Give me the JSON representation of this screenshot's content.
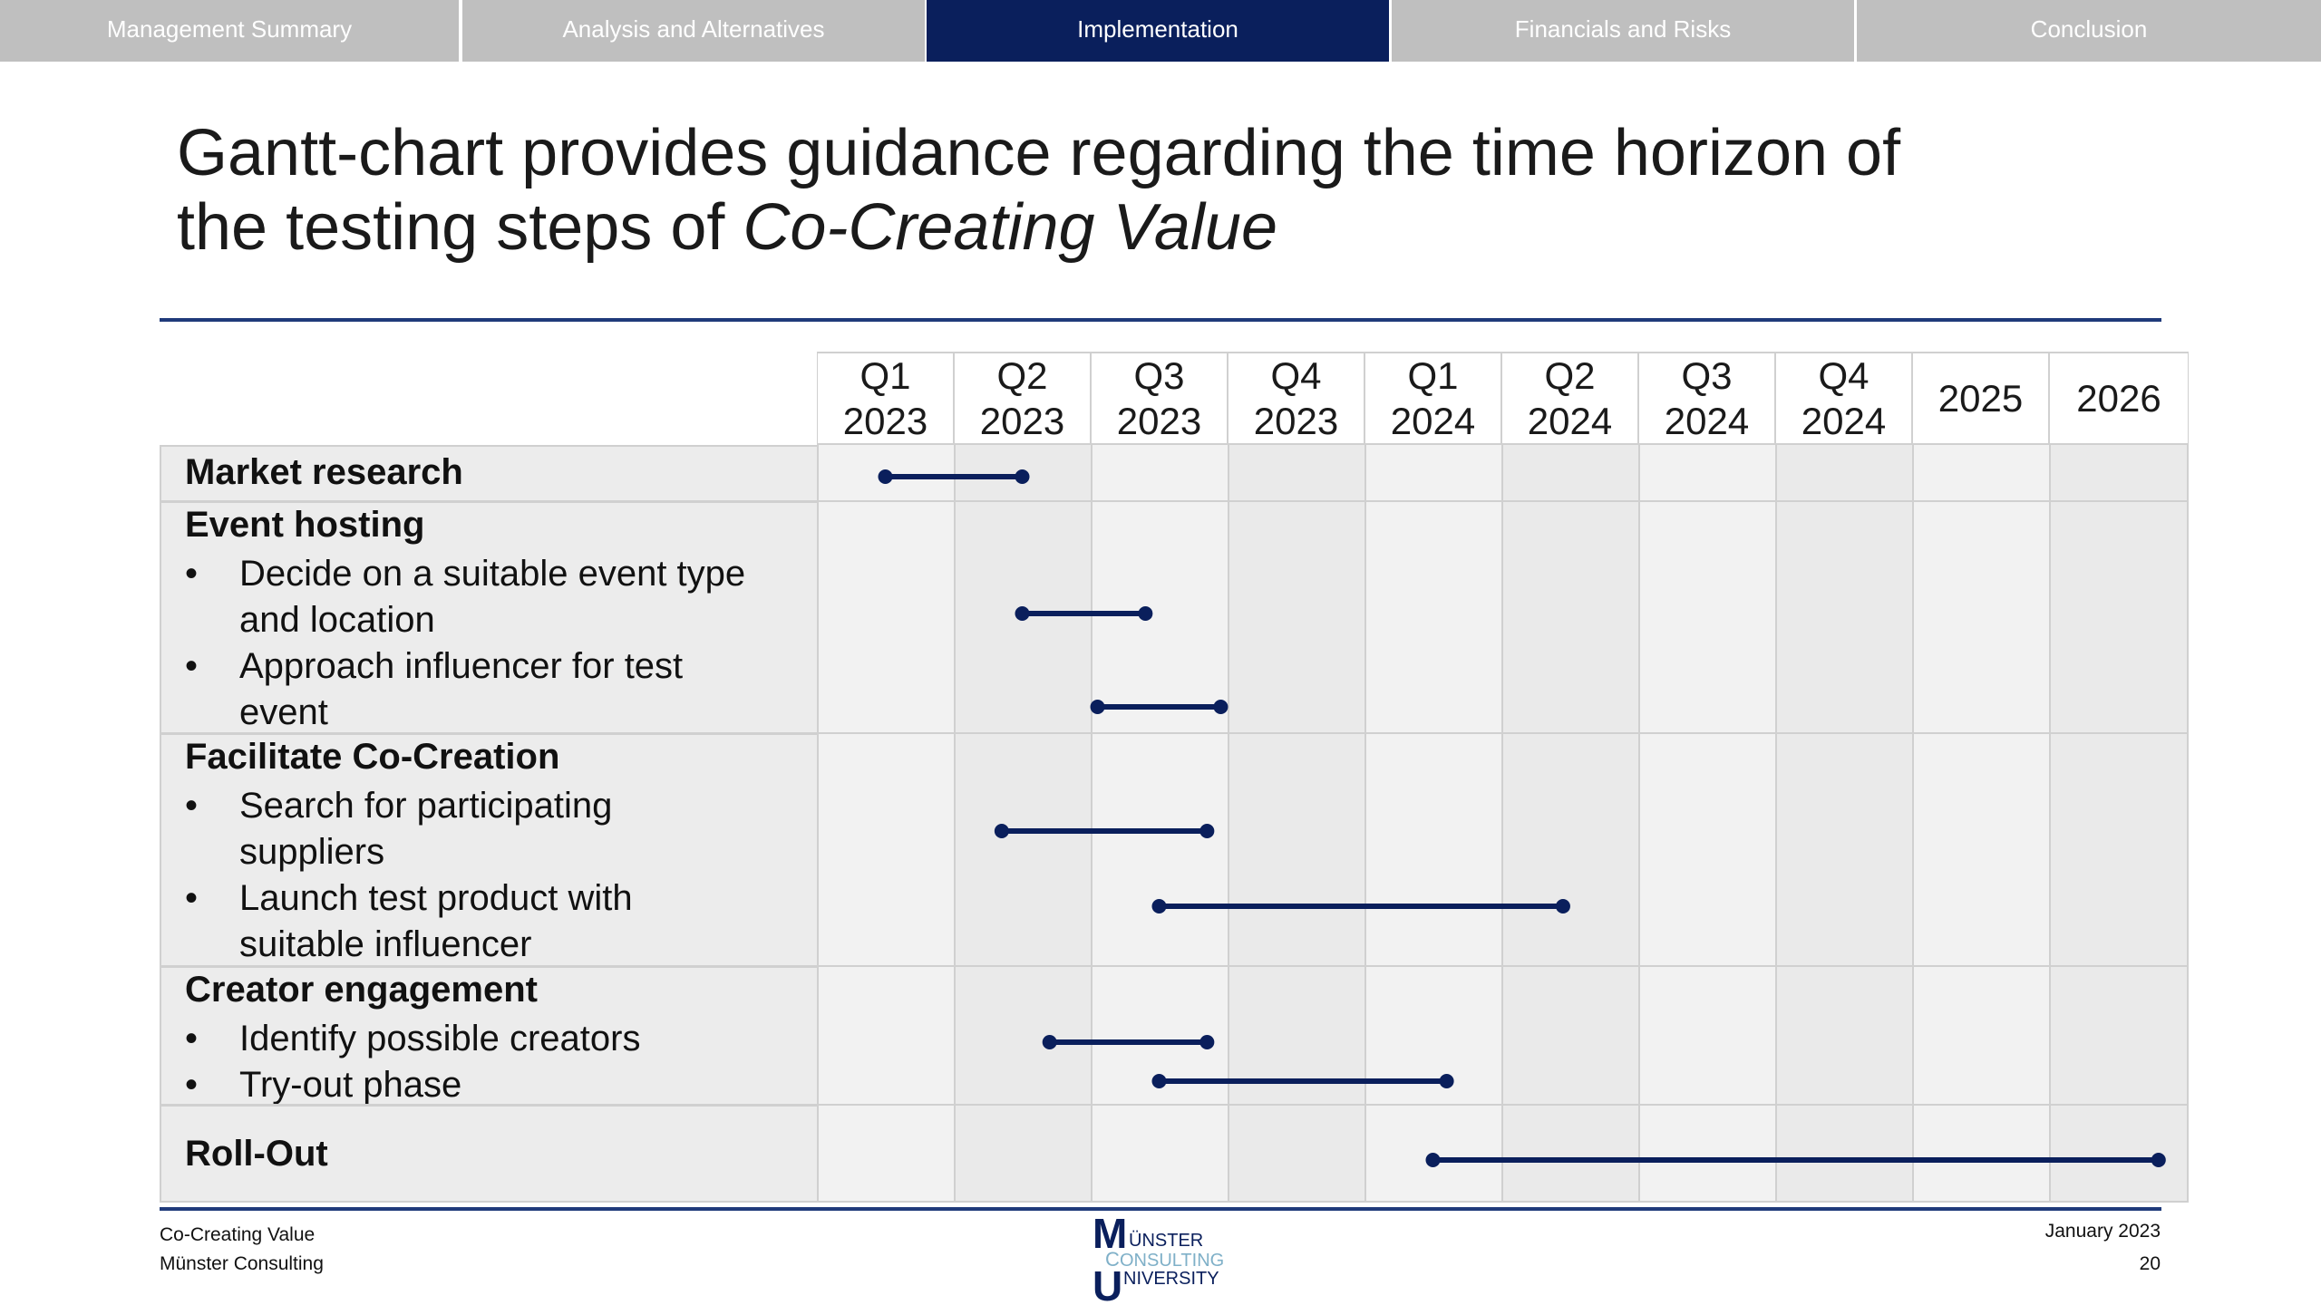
{
  "nav": {
    "tabs": [
      {
        "label": "Management Summary",
        "active": false
      },
      {
        "label": "Analysis and Alternatives",
        "active": false
      },
      {
        "label": "Implementation",
        "active": true
      },
      {
        "label": "Financials and Risks",
        "active": false
      },
      {
        "label": "Conclusion",
        "active": false
      }
    ]
  },
  "title": {
    "line1": "Gantt-chart provides guidance regarding the time horizon of",
    "line2_prefix": "the testing steps of ",
    "line2_italic": "Co-Creating Value"
  },
  "gantt": {
    "periods": [
      {
        "top": "Q1",
        "bottom": "2023"
      },
      {
        "top": "Q2",
        "bottom": "2023"
      },
      {
        "top": "Q3",
        "bottom": "2023"
      },
      {
        "top": "Q4",
        "bottom": "2023"
      },
      {
        "top": "Q1",
        "bottom": "2024"
      },
      {
        "top": "Q2",
        "bottom": "2024"
      },
      {
        "top": "Q3",
        "bottom": "2024"
      },
      {
        "top": "Q4",
        "bottom": "2024"
      },
      {
        "top": "2025",
        "bottom": ""
      },
      {
        "top": "2026",
        "bottom": ""
      }
    ],
    "groups": [
      {
        "name": "Market research",
        "items": []
      },
      {
        "name": "Event hosting",
        "items": [
          {
            "line1": "Decide on a suitable event type",
            "line2": "and location"
          },
          {
            "line1": "Approach influencer for test",
            "line2": "event"
          }
        ]
      },
      {
        "name": "Facilitate Co-Creation",
        "items": [
          {
            "line1": "Search for participating",
            "line2": "suppliers"
          },
          {
            "line1": "Launch test product with",
            "line2": "suitable influencer"
          }
        ]
      },
      {
        "name": "Creator engagement",
        "items": [
          {
            "line1": "Identify possible creators",
            "line2": ""
          },
          {
            "line1": "Try-out phase",
            "line2": ""
          }
        ]
      },
      {
        "name": "Roll-Out",
        "items": []
      }
    ],
    "bullet_symbol": "•",
    "bar_color": "#0a1f5c",
    "tasks": [
      {
        "task": "Market research",
        "start": 0.5,
        "end": 1.5
      },
      {
        "task": "Decide on a suitable event type and location",
        "start": 1.5,
        "end": 2.4
      },
      {
        "task": "Approach influencer for test event",
        "start": 2.05,
        "end": 2.95
      },
      {
        "task": "Search for participating suppliers",
        "start": 1.35,
        "end": 2.85
      },
      {
        "task": "Launch test product with suitable influencer",
        "start": 2.5,
        "end": 5.45
      },
      {
        "task": "Identify possible creators",
        "start": 1.7,
        "end": 2.85
      },
      {
        "task": "Try-out phase",
        "start": 2.5,
        "end": 4.6
      },
      {
        "task": "Roll-Out",
        "start": 4.5,
        "end": 9.8
      }
    ]
  },
  "footer": {
    "left_line1": "Co-Creating Value",
    "left_line2": "Münster Consulting",
    "right_line1": "January 2023",
    "right_line2": "20",
    "logo_text_1": "ÜNSTER",
    "logo_text_2": "ONSULTING",
    "logo_text_3": "NIVERSITY",
    "logo_letter_m": "M",
    "logo_letter_c": "C",
    "logo_letter_u": "U"
  }
}
